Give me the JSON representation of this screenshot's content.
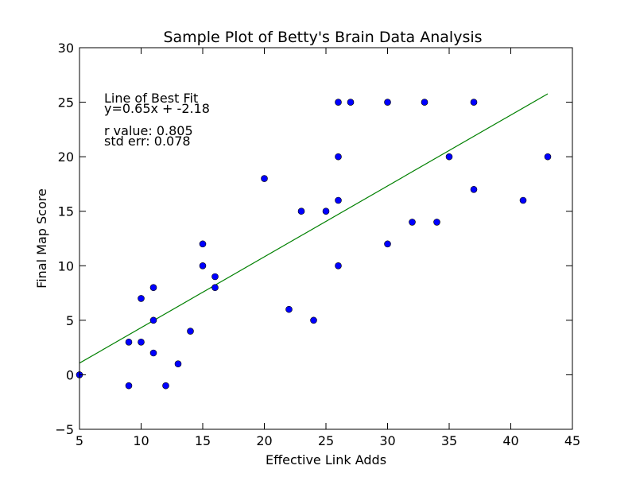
{
  "chart_data": {
    "type": "scatter",
    "title": "Sample Plot of Betty's Brain Data Analysis",
    "xlabel": "Effective Link Adds",
    "ylabel": "Final Map Score",
    "xlim": [
      5,
      45
    ],
    "ylim": [
      -5,
      30
    ],
    "xticks": [
      5,
      10,
      15,
      20,
      25,
      30,
      35,
      40,
      45
    ],
    "yticks": [
      -5,
      0,
      5,
      10,
      15,
      20,
      25,
      30
    ],
    "xtick_labels": [
      "5",
      "10",
      "15",
      "20",
      "25",
      "30",
      "35",
      "40",
      "45"
    ],
    "ytick_labels": [
      "−5",
      "0",
      "5",
      "10",
      "15",
      "20",
      "25",
      "30"
    ],
    "grid": false,
    "points": [
      [
        5,
        0
      ],
      [
        9,
        3
      ],
      [
        9,
        -1
      ],
      [
        10,
        7
      ],
      [
        10,
        3
      ],
      [
        11,
        8
      ],
      [
        11,
        5
      ],
      [
        11,
        2
      ],
      [
        12,
        -1
      ],
      [
        13,
        1
      ],
      [
        14,
        4
      ],
      [
        15,
        12
      ],
      [
        15,
        10
      ],
      [
        16,
        9
      ],
      [
        16,
        8
      ],
      [
        20,
        18
      ],
      [
        22,
        6
      ],
      [
        23,
        15
      ],
      [
        24,
        5
      ],
      [
        25,
        15
      ],
      [
        26,
        25
      ],
      [
        26,
        20
      ],
      [
        26,
        16
      ],
      [
        26,
        10
      ],
      [
        27,
        25
      ],
      [
        30,
        25
      ],
      [
        30,
        12
      ],
      [
        32,
        14
      ],
      [
        33,
        25
      ],
      [
        34,
        14
      ],
      [
        35,
        20
      ],
      [
        37,
        25
      ],
      [
        37,
        17
      ],
      [
        41,
        16
      ],
      [
        43,
        20
      ]
    ],
    "point_color": "#0000ff",
    "fit_line": {
      "slope": 0.65,
      "intercept": -2.18,
      "x_range": [
        5,
        43
      ],
      "color": "#008000"
    },
    "annotations": [
      "Line of Best Fit",
      "y=0.65x + -2.18",
      "r value: 0.805",
      "std err: 0.078"
    ]
  }
}
